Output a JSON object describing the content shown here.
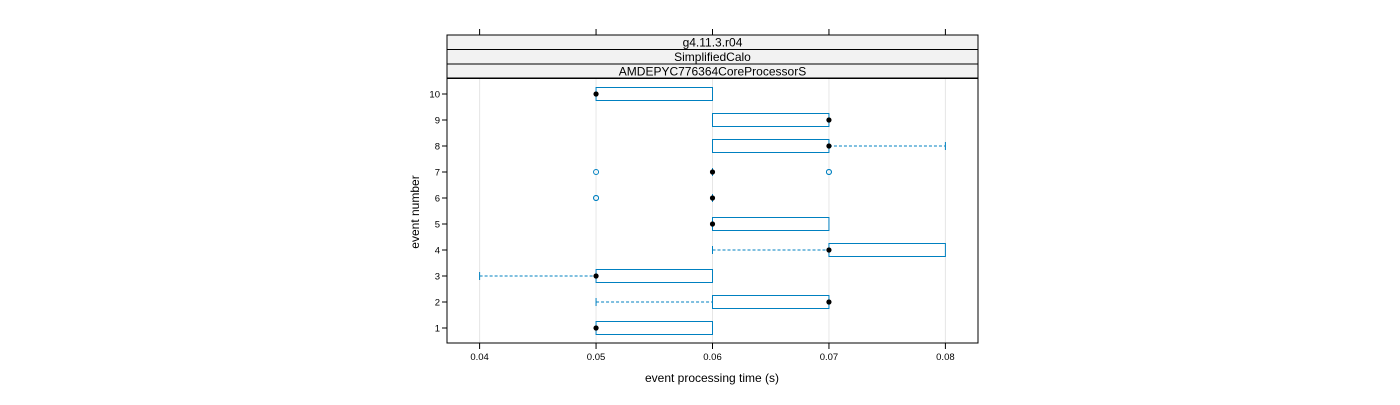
{
  "chart_data": {
    "type": "boxplot",
    "strips": [
      "g4.11.3.r04",
      "SimplifiedCalo",
      "AMDEPYC776364CoreProcessorS"
    ],
    "xlabel": "event processing time (s)",
    "ylabel": "event number",
    "xlim": [
      0.0372,
      0.0828
    ],
    "x_ticks": [
      {
        "value": 0.04,
        "label": "0.04"
      },
      {
        "value": 0.05,
        "label": "0.05"
      },
      {
        "value": 0.06,
        "label": "0.06"
      },
      {
        "value": 0.07,
        "label": "0.07"
      },
      {
        "value": 0.08,
        "label": "0.08"
      }
    ],
    "categories": [
      "1",
      "2",
      "3",
      "4",
      "5",
      "6",
      "7",
      "8",
      "9",
      "10"
    ],
    "grid": "vertical",
    "colors": {
      "box": "#0080c0",
      "median": "#000000",
      "frame": "#000000",
      "grid": "#e6e6e6",
      "strip_fill": "#f2f2f2"
    },
    "boxes": [
      {
        "event": "1",
        "whisker_low": 0.05,
        "q1": 0.05,
        "median": 0.05,
        "q3": 0.06,
        "whisker_high": 0.06,
        "outliers": []
      },
      {
        "event": "2",
        "whisker_low": 0.05,
        "q1": 0.06,
        "median": 0.07,
        "q3": 0.07,
        "whisker_high": 0.07,
        "outliers": []
      },
      {
        "event": "3",
        "whisker_low": 0.04,
        "q1": 0.05,
        "median": 0.05,
        "q3": 0.06,
        "whisker_high": 0.06,
        "outliers": []
      },
      {
        "event": "4",
        "whisker_low": 0.06,
        "q1": 0.07,
        "median": 0.07,
        "q3": 0.08,
        "whisker_high": 0.08,
        "outliers": []
      },
      {
        "event": "5",
        "whisker_low": 0.06,
        "q1": 0.06,
        "median": 0.06,
        "q3": 0.07,
        "whisker_high": 0.07,
        "outliers": []
      },
      {
        "event": "6",
        "whisker_low": 0.06,
        "q1": 0.06,
        "median": 0.06,
        "q3": 0.06,
        "whisker_high": 0.06,
        "outliers": [
          0.05,
          0.05
        ]
      },
      {
        "event": "7",
        "whisker_low": 0.06,
        "q1": 0.06,
        "median": 0.06,
        "q3": 0.06,
        "whisker_high": 0.06,
        "outliers": [
          0.05,
          0.07,
          0.07
        ]
      },
      {
        "event": "8",
        "whisker_low": 0.06,
        "q1": 0.06,
        "median": 0.07,
        "q3": 0.07,
        "whisker_high": 0.08,
        "outliers": []
      },
      {
        "event": "9",
        "whisker_low": 0.06,
        "q1": 0.06,
        "median": 0.07,
        "q3": 0.07,
        "whisker_high": 0.07,
        "outliers": []
      },
      {
        "event": "10",
        "whisker_low": 0.05,
        "q1": 0.05,
        "median": 0.05,
        "q3": 0.06,
        "whisker_high": 0.06,
        "outliers": []
      }
    ]
  }
}
